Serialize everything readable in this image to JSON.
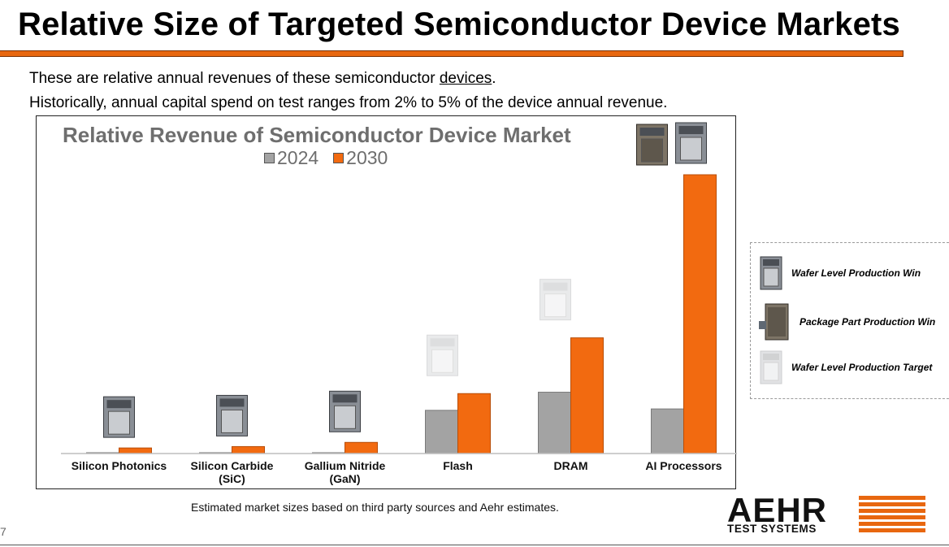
{
  "slide": {
    "title": "Relative Size of Targeted Semiconductor Device Markets",
    "intro_line1_prefix": "These are relative annual revenues of these semiconductor ",
    "intro_line1_link": "devices",
    "intro_line1_suffix": ".",
    "intro_line2": "Historically, annual capital spend on test ranges from 2% to 5% of the device annual revenue.",
    "footnote": "Estimated market sizes based on third party sources and Aehr estimates.",
    "page_number": "7"
  },
  "legend_box": {
    "items": [
      {
        "label": "Wafer Level Production Win",
        "icon": "wafer-level-system-icon"
      },
      {
        "label": "Package Part Production Win",
        "icon": "package-part-system-icon"
      },
      {
        "label": "Wafer Level Production Target",
        "icon": "faded-wafer-level-system-icon"
      }
    ]
  },
  "logo": {
    "name": "AEHR",
    "subtitle": "TEST SYSTEMS"
  },
  "colors": {
    "accent_orange": "#f26a10",
    "series_gray": "#a3a3a3",
    "title_gray": "#6e6e6e"
  },
  "chart_data": {
    "type": "bar",
    "title": "Relative Revenue of Semiconductor Device Market",
    "categories": [
      "Silicon Photonics",
      "Silicon Carbide\n(SiC)",
      "Gallium Nitride\n(GaN)",
      "Flash",
      "DRAM",
      "AI Processors"
    ],
    "series": [
      {
        "name": "2024",
        "color": "#a3a3a3",
        "values": [
          0.3,
          0.3,
          0.3,
          15.5,
          22,
          16
        ]
      },
      {
        "name": "2030",
        "color": "#f26a10",
        "values": [
          2,
          2.5,
          4,
          21.5,
          41.5,
          100
        ]
      }
    ],
    "ylim": [
      0,
      100
    ],
    "xlabel": "",
    "ylabel": "",
    "units": "relative revenue (AI Processors 2030 = 100)",
    "grid": false,
    "legend": "top-center",
    "markers": [
      "wafer-level-win",
      "wafer-level-win",
      "wafer-level-win",
      "wafer-level-target",
      "wafer-level-target",
      "wafer-and-package-win"
    ]
  }
}
